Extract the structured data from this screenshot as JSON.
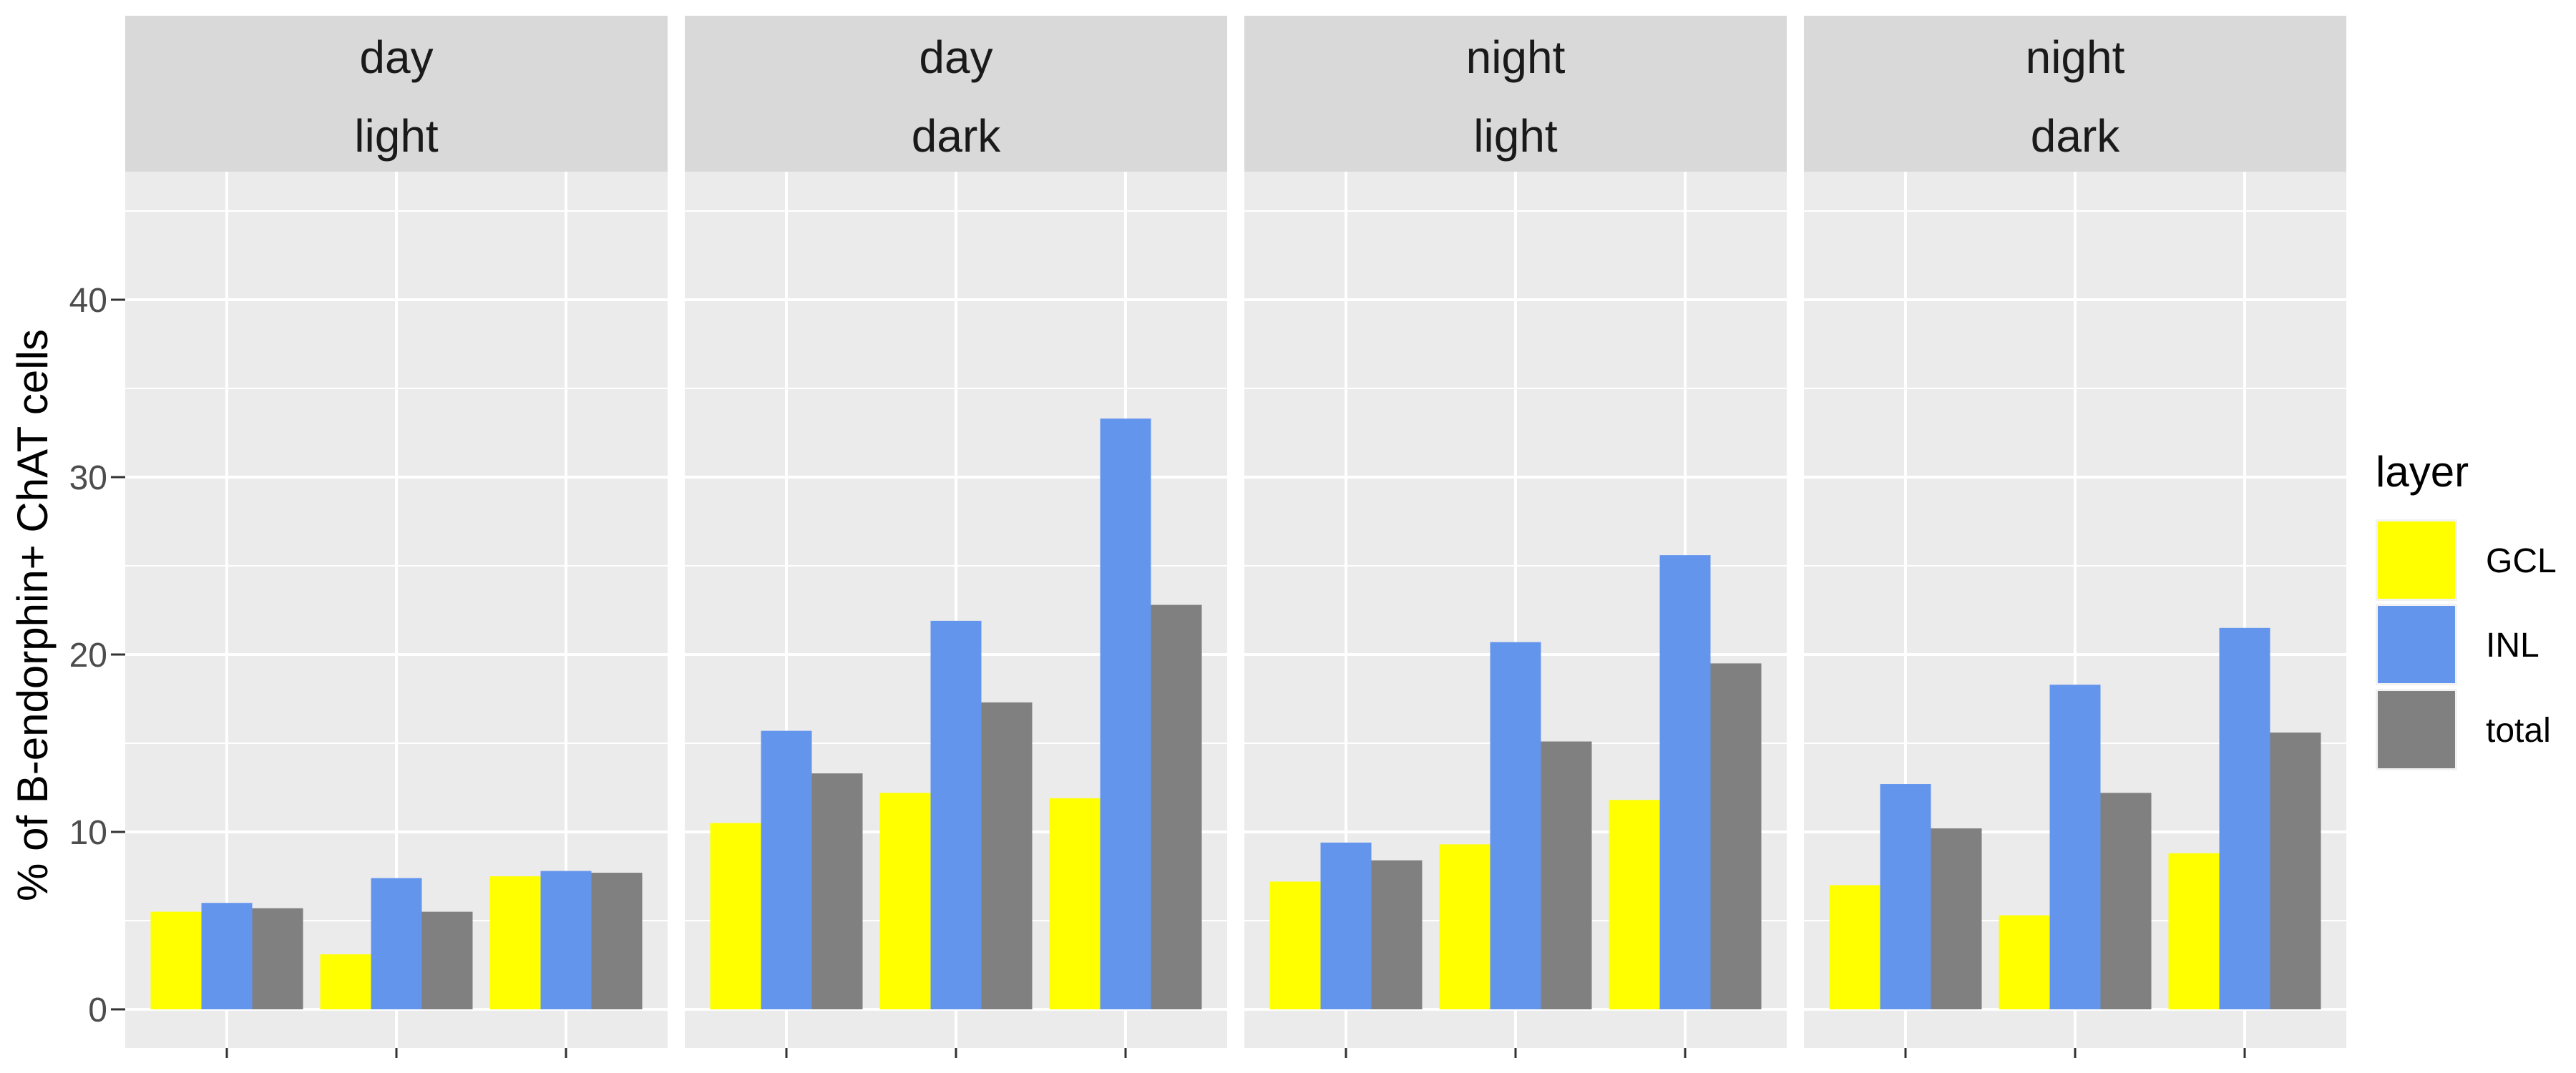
{
  "chart_data": {
    "type": "bar",
    "ylabel": "% of B-endorphin+ ChAT cells",
    "xlabel": "",
    "ylim": [
      0,
      46
    ],
    "yticks": [
      0,
      10,
      20,
      30,
      40
    ],
    "grid": true,
    "legend": {
      "title": "layer",
      "position": "right"
    },
    "series_names": [
      "GCL",
      "INL",
      "total"
    ],
    "colors": {
      "GCL": "#FFFF00",
      "INL": "#6495ED",
      "total": "#808080",
      "panel_bg": "#EBEBEB",
      "strip_bg": "#D9D9D9",
      "gridline": "#FFFFFF"
    },
    "panels": [
      {
        "strip": [
          "day",
          "light"
        ],
        "groups": [
          {
            "GCL": 5.5,
            "INL": 6.0,
            "total": 5.7
          },
          {
            "GCL": 3.1,
            "INL": 7.4,
            "total": 5.5
          },
          {
            "GCL": 7.5,
            "INL": 7.8,
            "total": 7.7
          }
        ]
      },
      {
        "strip": [
          "day",
          "dark"
        ],
        "groups": [
          {
            "GCL": 10.5,
            "INL": 15.7,
            "total": 13.3
          },
          {
            "GCL": 12.2,
            "INL": 21.9,
            "total": 17.3
          },
          {
            "GCL": 11.9,
            "INL": 33.3,
            "total": 22.8
          }
        ]
      },
      {
        "strip": [
          "night",
          "light"
        ],
        "groups": [
          {
            "GCL": 7.2,
            "INL": 9.4,
            "total": 8.4
          },
          {
            "GCL": 9.3,
            "INL": 20.7,
            "total": 15.1
          },
          {
            "GCL": 11.8,
            "INL": 25.6,
            "total": 19.5
          }
        ]
      },
      {
        "strip": [
          "night",
          "dark"
        ],
        "groups": [
          {
            "GCL": 7.0,
            "INL": 12.7,
            "total": 10.2
          },
          {
            "GCL": 5.3,
            "INL": 18.3,
            "total": 12.2
          },
          {
            "GCL": 8.8,
            "INL": 21.5,
            "total": 15.6
          }
        ]
      }
    ]
  }
}
